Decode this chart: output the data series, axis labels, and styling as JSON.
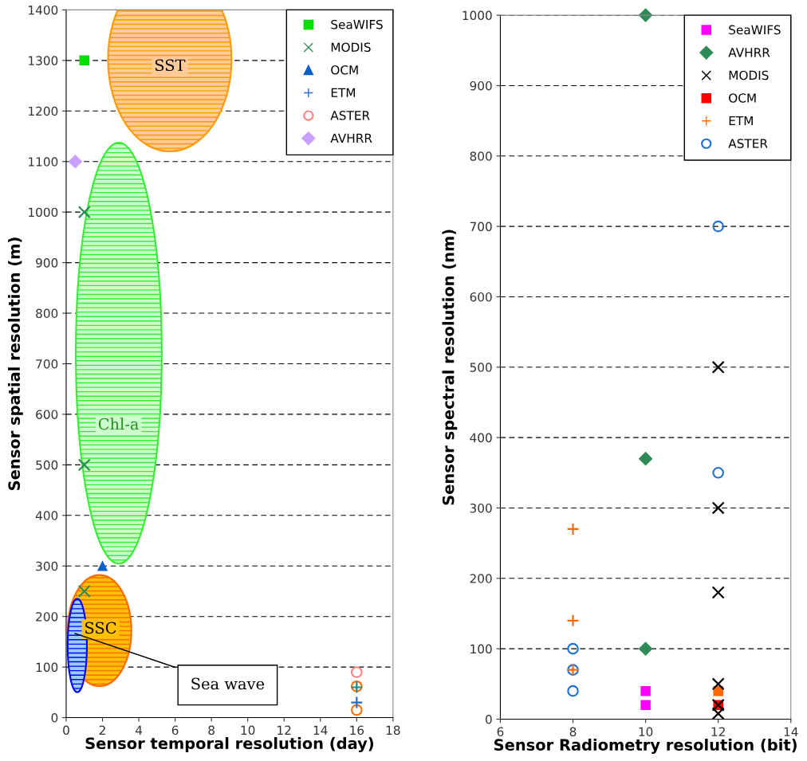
{
  "chart_data": [
    {
      "type": "scatter",
      "xlabel": "Sensor temporal resolution (day)",
      "ylabel": "Sensor spatial resolution (m)",
      "xlim": [
        0,
        18
      ],
      "xticks": [
        0,
        2,
        4,
        6,
        8,
        10,
        12,
        14,
        16,
        18
      ],
      "ylim": [
        0,
        1400
      ],
      "yticks": [
        0,
        100,
        200,
        300,
        400,
        500,
        600,
        700,
        800,
        900,
        1000,
        1100,
        1200,
        1300,
        1400
      ],
      "grid": "y",
      "legend": "top right",
      "series": [
        {
          "name": "SeaWIFS",
          "color": "#00e000",
          "marker": "square",
          "x": [
            1
          ],
          "values": [
            1300
          ]
        },
        {
          "name": "MODIS",
          "color": "#2e8b57",
          "marker": "cross",
          "x": [
            1,
            1,
            1
          ],
          "values": [
            1000,
            500,
            250
          ]
        },
        {
          "name": "OCM",
          "color": "#0a5fcc",
          "marker": "triangle",
          "x": [
            2
          ],
          "values": [
            300
          ]
        },
        {
          "name": "ETM",
          "color": "#1f6fd6",
          "marker": "plus",
          "x": [
            16,
            16
          ],
          "values": [
            60,
            30
          ],
          "colors": [
            "#1a8a8a",
            "#1f6fd6"
          ]
        },
        {
          "name": "ASTER",
          "color": "#ff8080",
          "marker": "circle",
          "x": [
            16,
            16,
            16
          ],
          "values": [
            90,
            62,
            15
          ],
          "colors": [
            "#ff8080",
            "#ff6a00",
            "#ff6a00"
          ]
        },
        {
          "name": "AVHRR",
          "color": "#c8a0ff",
          "marker": "diamond",
          "x": [
            0.5
          ],
          "values": [
            1100
          ]
        }
      ],
      "annotations": [
        "SST",
        "Chl-a",
        "SSC",
        "Sea wave"
      ]
    },
    {
      "type": "scatter",
      "xlabel": "Sensor Radiometry resolution (bit)",
      "ylabel": "Sensor spectral resolution (nm)",
      "xlim": [
        6,
        14
      ],
      "xticks": [
        6,
        8,
        10,
        12,
        14
      ],
      "ylim": [
        0,
        1000
      ],
      "yticks": [
        0,
        100,
        200,
        300,
        400,
        500,
        600,
        700,
        800,
        900,
        1000
      ],
      "grid": "y",
      "legend": "top right",
      "series": [
        {
          "name": "SeaWIFS",
          "color": "#ff00ff",
          "marker": "square",
          "x": [
            10,
            10
          ],
          "values": [
            40,
            20
          ]
        },
        {
          "name": "AVHRR",
          "color": "#2e8b57",
          "marker": "diamond",
          "x": [
            10,
            10,
            10
          ],
          "values": [
            1000,
            370,
            100
          ]
        },
        {
          "name": "MODIS",
          "color": "#000000",
          "marker": "cross",
          "x": [
            12,
            12,
            12,
            12,
            12,
            12
          ],
          "values": [
            500,
            300,
            180,
            50,
            20,
            8
          ]
        },
        {
          "name": "OCM",
          "color": "#ff0000",
          "marker": "square",
          "x": [
            12,
            12
          ],
          "values": [
            40,
            20
          ],
          "colors": [
            "#ff6a00",
            "#ff0000"
          ]
        },
        {
          "name": "ETM",
          "color": "#ff6a00",
          "marker": "plus",
          "x": [
            8,
            8,
            8
          ],
          "values": [
            270,
            140,
            70
          ]
        },
        {
          "name": "ASTER",
          "color": "#1f6fd6",
          "marker": "circle",
          "x": [
            12,
            12,
            8,
            8,
            8
          ],
          "values": [
            700,
            350,
            100,
            70,
            40
          ]
        }
      ]
    }
  ]
}
